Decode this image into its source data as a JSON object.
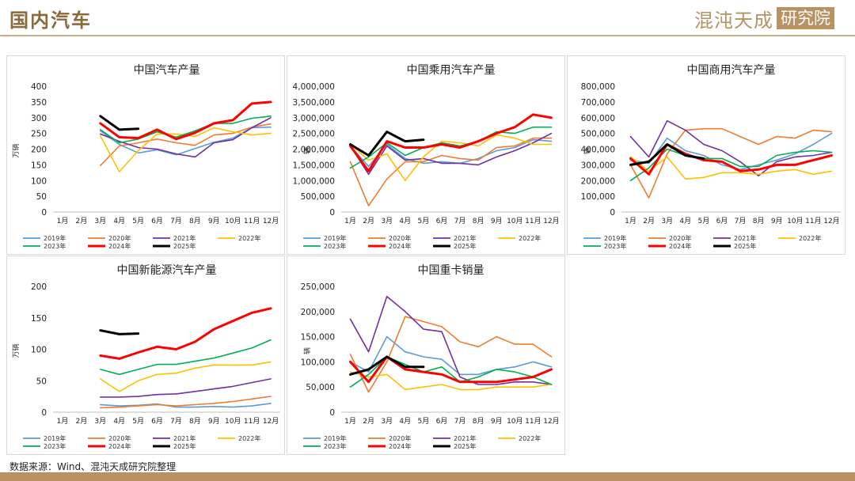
{
  "page": {
    "title": "国内汽车",
    "brand_text": "混沌天成",
    "brand_box": "研究院",
    "source": "数据来源：Wind、混沌天成研究院整理"
  },
  "colors": {
    "2019年": "#5b9bd5",
    "2020年": "#ed7d31",
    "2021年": "#7030a0",
    "2022年": "#ffc000",
    "2023年": "#00b050",
    "2024年": "#ff0000",
    "2025年": "#000000"
  },
  "chart_data": [
    {
      "type": "line",
      "title": "中国汽车产量",
      "ylabel": "万辆",
      "ylim": [
        0,
        400
      ],
      "yticks": [
        "0",
        "50",
        "100",
        "150",
        "200",
        "250",
        "300",
        "350",
        "400"
      ],
      "categories": [
        "1月",
        "2月",
        "3月",
        "4月",
        "5月",
        "6月",
        "7月",
        "8月",
        "9月",
        "10月",
        "11月",
        "12月"
      ],
      "grid": false,
      "legend": "bottom",
      "series": [
        {
          "name": "2019年",
          "values": [
            null,
            null,
            258,
            215,
            188,
            198,
            182,
            202,
            222,
            235,
            268,
            270
          ]
        },
        {
          "name": "2020年",
          "values": [
            null,
            null,
            148,
            210,
            220,
            232,
            220,
            212,
            245,
            250,
            270,
            280
          ]
        },
        {
          "name": "2021年",
          "values": [
            null,
            null,
            248,
            225,
            205,
            200,
            185,
            175,
            220,
            230,
            268,
            300
          ]
        },
        {
          "name": "2022年",
          "values": [
            null,
            null,
            242,
            128,
            195,
            248,
            248,
            240,
            268,
            255,
            245,
            250
          ]
        },
        {
          "name": "2023年",
          "values": [
            null,
            null,
            262,
            220,
            232,
            255,
            238,
            258,
            282,
            282,
            298,
            305
          ]
        },
        {
          "name": "2024年",
          "values": [
            null,
            null,
            282,
            238,
            235,
            262,
            232,
            252,
            282,
            292,
            345,
            350
          ]
        },
        {
          "name": "2025年",
          "values": [
            null,
            null,
            305,
            262,
            265,
            null,
            null,
            null,
            null,
            null,
            null,
            null
          ]
        }
      ]
    },
    {
      "type": "line",
      "title": "中国乘用汽车产量",
      "ylabel": "辆",
      "ylim": [
        0,
        4000000
      ],
      "yticks": [
        "0",
        "500,000",
        "1,000,000",
        "1,500,000",
        "2,000,000",
        "2,500,000",
        "3,000,000",
        "3,500,000",
        "4,000,000"
      ],
      "categories": [
        "1月",
        "2月",
        "3月",
        "4月",
        "5月",
        "6月",
        "7月",
        "8月",
        "9月",
        "10月",
        "11月",
        "12月"
      ],
      "grid": false,
      "legend": "bottom",
      "series": [
        {
          "name": "2019年",
          "values": [
            2100000,
            1450000,
            2150000,
            1700000,
            1550000,
            1600000,
            1550000,
            1700000,
            1950000,
            2050000,
            2300000,
            2250000
          ]
        },
        {
          "name": "2020年",
          "values": [
            1600000,
            200000,
            1050000,
            1600000,
            1600000,
            1800000,
            1700000,
            1650000,
            2050000,
            2100000,
            2350000,
            2350000
          ]
        },
        {
          "name": "2021年",
          "values": [
            2100000,
            1200000,
            2100000,
            1650000,
            1700000,
            1550000,
            1550000,
            1500000,
            1750000,
            1950000,
            2200000,
            2500000
          ]
        },
        {
          "name": "2022年",
          "values": [
            2150000,
            1650000,
            1850000,
            1000000,
            1750000,
            2250000,
            2200000,
            2100000,
            2450000,
            2350000,
            2150000,
            2150000
          ]
        },
        {
          "name": "2023年",
          "values": [
            1400000,
            1750000,
            2200000,
            1800000,
            2050000,
            2200000,
            2100000,
            2250000,
            2550000,
            2500000,
            2700000,
            2700000
          ]
        },
        {
          "name": "2024年",
          "values": [
            2100000,
            1300000,
            2250000,
            2050000,
            2050000,
            2150000,
            2050000,
            2250000,
            2500000,
            2700000,
            3100000,
            3000000
          ]
        },
        {
          "name": "2025年",
          "values": [
            2150000,
            1800000,
            2550000,
            2250000,
            2300000,
            null,
            null,
            null,
            null,
            null,
            null,
            null
          ]
        }
      ]
    },
    {
      "type": "line",
      "title": "中国商用汽车产量",
      "ylabel": "辆",
      "ylim": [
        0,
        800000
      ],
      "yticks": [
        "0",
        "100,000",
        "200,000",
        "300,000",
        "400,000",
        "500,000",
        "600,000",
        "700,000",
        "800,000"
      ],
      "categories": [
        "1月",
        "2月",
        "3月",
        "4月",
        "5月",
        "6月",
        "7月",
        "8月",
        "9月",
        "10月",
        "11月",
        "12月"
      ],
      "grid": false,
      "legend": "bottom",
      "series": [
        {
          "name": "2019年",
          "values": [
            330000,
            310000,
            470000,
            390000,
            360000,
            300000,
            270000,
            300000,
            330000,
            370000,
            430000,
            500000
          ]
        },
        {
          "name": "2020年",
          "values": [
            300000,
            90000,
            370000,
            520000,
            530000,
            530000,
            480000,
            430000,
            480000,
            470000,
            520000,
            510000
          ]
        },
        {
          "name": "2021年",
          "values": [
            480000,
            350000,
            580000,
            520000,
            430000,
            390000,
            320000,
            230000,
            320000,
            350000,
            360000,
            380000
          ]
        },
        {
          "name": "2022年",
          "values": [
            350000,
            260000,
            350000,
            210000,
            220000,
            250000,
            250000,
            240000,
            260000,
            270000,
            240000,
            260000
          ]
        },
        {
          "name": "2023年",
          "values": [
            200000,
            280000,
            400000,
            360000,
            340000,
            340000,
            290000,
            290000,
            360000,
            380000,
            390000,
            380000
          ]
        },
        {
          "name": "2024年",
          "values": [
            340000,
            240000,
            430000,
            370000,
            330000,
            320000,
            260000,
            270000,
            300000,
            300000,
            330000,
            360000
          ]
        },
        {
          "name": "2025年",
          "values": [
            300000,
            320000,
            430000,
            360000,
            340000,
            null,
            null,
            null,
            null,
            null,
            null,
            null
          ]
        }
      ]
    },
    {
      "type": "line",
      "title": "中国新能源汽车产量",
      "ylabel": "万辆",
      "ylim": [
        0,
        200
      ],
      "yticks": [
        "0",
        "50",
        "100",
        "150",
        "200"
      ],
      "categories": [
        "1月",
        "2月",
        "3月",
        "4月",
        "5月",
        "6月",
        "7月",
        "8月",
        "9月",
        "10月",
        "11月",
        "12月"
      ],
      "grid": false,
      "legend": "bottom",
      "series": [
        {
          "name": "2019年",
          "values": [
            null,
            null,
            12,
            10,
            11,
            13,
            8,
            8,
            9,
            8,
            10,
            14
          ]
        },
        {
          "name": "2020年",
          "values": [
            null,
            null,
            7,
            8,
            10,
            12,
            10,
            12,
            14,
            17,
            21,
            25
          ]
        },
        {
          "name": "2021年",
          "values": [
            null,
            null,
            24,
            24,
            25,
            28,
            29,
            33,
            37,
            41,
            47,
            53
          ]
        },
        {
          "name": "2022年",
          "values": [
            null,
            null,
            53,
            33,
            50,
            60,
            62,
            70,
            75,
            75,
            75,
            80
          ]
        },
        {
          "name": "2023年",
          "values": [
            null,
            null,
            68,
            60,
            68,
            76,
            76,
            81,
            86,
            94,
            102,
            115
          ]
        },
        {
          "name": "2024年",
          "values": [
            null,
            null,
            90,
            85,
            95,
            104,
            100,
            112,
            132,
            145,
            158,
            165
          ]
        },
        {
          "name": "2025年",
          "values": [
            null,
            null,
            130,
            124,
            125,
            null,
            null,
            null,
            null,
            null,
            null,
            null
          ]
        }
      ]
    },
    {
      "type": "line",
      "title": "中国重卡销量",
      "ylabel": "辆",
      "ylim": [
        0,
        250000
      ],
      "yticks": [
        "0",
        "50,000",
        "100,000",
        "150,000",
        "200,000",
        "250,000"
      ],
      "categories": [
        "1月",
        "2月",
        "3月",
        "4月",
        "5月",
        "6月",
        "7月",
        "8月",
        "9月",
        "10月",
        "11月",
        "12月"
      ],
      "grid": false,
      "legend": "bottom",
      "series": [
        {
          "name": "2019年",
          "values": [
            100000,
            80000,
            150000,
            120000,
            110000,
            105000,
            75000,
            75000,
            85000,
            90000,
            100000,
            90000
          ]
        },
        {
          "name": "2020年",
          "values": [
            115000,
            40000,
            100000,
            190000,
            180000,
            170000,
            140000,
            130000,
            150000,
            135000,
            135000,
            110000
          ]
        },
        {
          "name": "2021年",
          "values": [
            185000,
            120000,
            230000,
            200000,
            165000,
            160000,
            70000,
            55000,
            55000,
            60000,
            60000,
            55000
          ]
        },
        {
          "name": "2022年",
          "values": [
            80000,
            70000,
            75000,
            45000,
            50000,
            55000,
            45000,
            45000,
            50000,
            50000,
            50000,
            55000
          ]
        },
        {
          "name": "2023年",
          "values": [
            50000,
            75000,
            110000,
            95000,
            80000,
            90000,
            60000,
            70000,
            85000,
            80000,
            70000,
            55000
          ]
        },
        {
          "name": "2024年",
          "values": [
            100000,
            60000,
            110000,
            85000,
            80000,
            75000,
            60000,
            60000,
            60000,
            65000,
            70000,
            85000
          ]
        },
        {
          "name": "2025年",
          "values": [
            75000,
            85000,
            110000,
            90000,
            90000,
            null,
            null,
            null,
            null,
            null,
            null,
            null
          ]
        }
      ]
    }
  ]
}
